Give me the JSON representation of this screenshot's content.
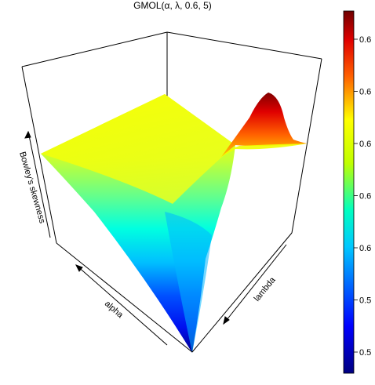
{
  "chart_data": {
    "type": "surface",
    "title": "GMOL(α, λ, 0.6, 5)",
    "xlabel": "alpha",
    "ylabel": "lambda",
    "zlabel": "Bowley's skewness",
    "colorbar": {
      "tick_labels": [
        "0.5",
        "0.5",
        "0.6",
        "0.6",
        "0.6",
        "0.6",
        "0.6"
      ],
      "colors": [
        "#000080",
        "#0000ff",
        "#00ffff",
        "#80ff00",
        "#ffff00",
        "#ff0000",
        "#800000"
      ]
    },
    "grid": false
  }
}
